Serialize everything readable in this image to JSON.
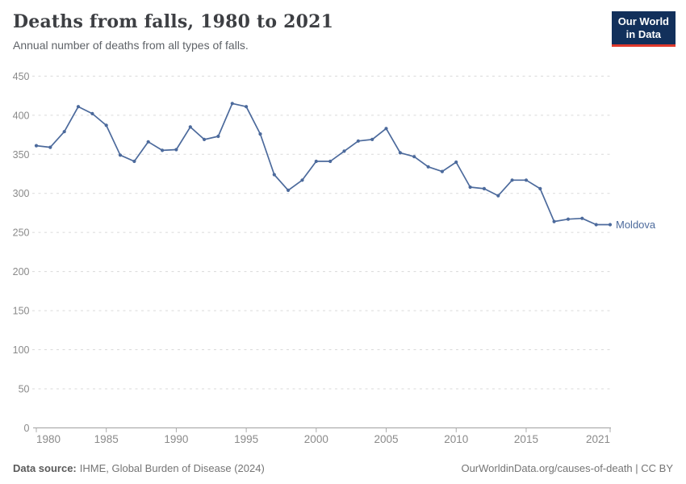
{
  "header": {
    "title": "Deaths from falls, 1980 to 2021",
    "subtitle": "Annual number of deaths from all types of falls."
  },
  "logo": {
    "line1": "Our World",
    "line2": "in Data"
  },
  "footer": {
    "source_label": "Data source:",
    "source_text": "IHME, Global Burden of Disease (2024)",
    "link_text": "OurWorldinData.org/causes-of-death | CC BY"
  },
  "colors": {
    "line": "#4c6a9c",
    "logo_bg": "#12305b",
    "logo_accent": "#e0392c",
    "gridline": "#dadada",
    "axis": "#9c9c9c",
    "tick_label": "#8a8a8a"
  },
  "chart_data": {
    "type": "line",
    "title": "Deaths from falls, 1980 to 2021",
    "subtitle": "Annual number of deaths from all types of falls.",
    "xlabel": "",
    "ylabel": "",
    "xlim": [
      1980,
      2021
    ],
    "ylim": [
      0,
      450
    ],
    "x_ticks": [
      1980,
      1985,
      1990,
      1995,
      2000,
      2005,
      2010,
      2015,
      2021
    ],
    "y_ticks": [
      0,
      50,
      100,
      150,
      200,
      250,
      300,
      350,
      400,
      450
    ],
    "grid": "horizontal-dashed",
    "legend_position": "end-of-line",
    "series": [
      {
        "name": "Moldova",
        "color": "#4c6a9c",
        "x": [
          1980,
          1981,
          1982,
          1983,
          1984,
          1985,
          1986,
          1987,
          1988,
          1989,
          1990,
          1991,
          1992,
          1993,
          1994,
          1995,
          1996,
          1997,
          1998,
          1999,
          2000,
          2001,
          2002,
          2003,
          2004,
          2005,
          2006,
          2007,
          2008,
          2009,
          2010,
          2011,
          2012,
          2013,
          2014,
          2015,
          2016,
          2017,
          2018,
          2019,
          2020,
          2021
        ],
        "values": [
          361,
          359,
          379,
          411,
          402,
          387,
          349,
          341,
          366,
          355,
          356,
          385,
          369,
          373,
          415,
          411,
          376,
          324,
          304,
          317,
          341,
          341,
          354,
          367,
          369,
          383,
          352,
          347,
          334,
          328,
          340,
          308,
          306,
          297,
          317,
          317,
          306,
          264,
          267,
          268,
          260,
          260
        ]
      }
    ]
  }
}
